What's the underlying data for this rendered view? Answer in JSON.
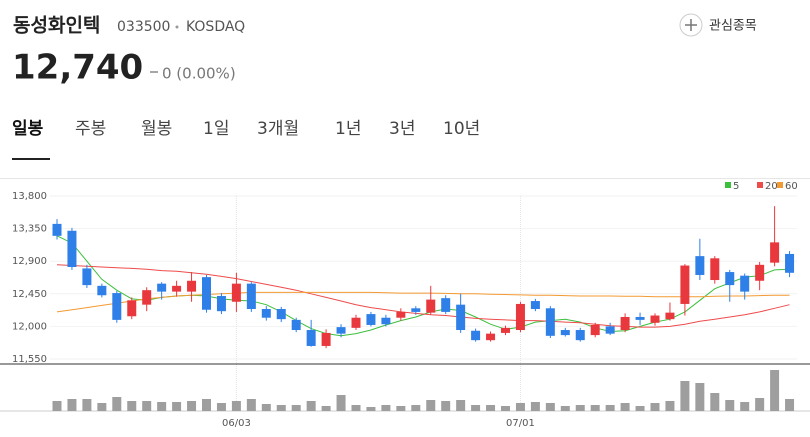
{
  "header": {
    "name": "동성화인텍",
    "code": "033500",
    "market": "KOSDAQ",
    "watch": "관심종목",
    "price": "12,740",
    "change": "0 (0.00%)"
  },
  "tabs": [
    "일봉",
    "주봉",
    "월봉",
    "1일",
    "3개월",
    "1년",
    "3년",
    "10년"
  ],
  "chart_data": {
    "type": "candlestick",
    "categories": [
      null,
      null,
      null,
      null,
      null,
      null,
      null,
      null,
      null,
      null,
      null,
      null,
      "06/03",
      null,
      null,
      null,
      null,
      null,
      null,
      null,
      null,
      null,
      null,
      null,
      null,
      null,
      null,
      null,
      null,
      null,
      null,
      "07/01",
      null,
      null,
      null,
      null,
      null,
      null,
      null,
      null,
      null,
      null,
      null,
      null,
      null,
      null,
      null,
      null,
      null,
      null
    ],
    "open": [
      13415,
      13320,
      12800,
      12560,
      12460,
      12140,
      12300,
      12590,
      12480,
      12480,
      12680,
      12420,
      12340,
      12590,
      12240,
      12240,
      12090,
      11950,
      11730,
      11990,
      11980,
      12170,
      12120,
      12120,
      12250,
      12190,
      12390,
      12300,
      11940,
      11810,
      11910,
      11950,
      12350,
      12250,
      11950,
      11950,
      11880,
      12000,
      11950,
      12130,
      12050,
      12100,
      12310,
      12970,
      12640,
      12750,
      12700,
      12630,
      12880,
      13000
    ],
    "high": [
      13480,
      13360,
      12850,
      12590,
      12490,
      12400,
      12540,
      12610,
      12630,
      12750,
      12710,
      12460,
      12740,
      12610,
      12280,
      12270,
      12120,
      12090,
      11960,
      12030,
      12160,
      12200,
      12160,
      12250,
      12280,
      12560,
      12430,
      12450,
      11970,
      11930,
      12010,
      12340,
      12380,
      12280,
      11980,
      11980,
      12050,
      12050,
      12180,
      12190,
      12180,
      12330,
      12860,
      13210,
      12970,
      12780,
      12730,
      12890,
      13660,
      13040
    ],
    "low": [
      13200,
      12780,
      12530,
      12400,
      12050,
      12100,
      12210,
      12370,
      12410,
      12340,
      12190,
      12170,
      12200,
      12200,
      12080,
      12060,
      11920,
      11720,
      11700,
      11850,
      11950,
      12000,
      12000,
      12080,
      12160,
      12160,
      12170,
      11910,
      11790,
      11790,
      11880,
      11920,
      12210,
      11840,
      11860,
      11790,
      11850,
      11880,
      11920,
      12020,
      12010,
      12080,
      12150,
      12640,
      12590,
      12340,
      12370,
      12500,
      12830,
      12680
    ],
    "close": [
      13250,
      12820,
      12570,
      12430,
      12090,
      12360,
      12500,
      12480,
      12560,
      12630,
      12230,
      12210,
      12590,
      12240,
      12120,
      12100,
      11950,
      11730,
      11910,
      11900,
      12120,
      12020,
      12030,
      12200,
      12200,
      12370,
      12200,
      11950,
      11810,
      11900,
      11980,
      12310,
      12240,
      11870,
      11880,
      11810,
      12020,
      11900,
      12130,
      12090,
      12150,
      12190,
      12840,
      12710,
      12940,
      12570,
      12480,
      12850,
      13160,
      12740
    ],
    "up_color": "#e8383d",
    "down_color": "#2f7fe8",
    "series": [
      {
        "name": "5",
        "color": "#3cbf3c",
        "values": [
          13250,
          13150,
          12900,
          12650,
          12500,
          12380,
          12360,
          12400,
          12420,
          12430,
          12420,
          12380,
          12360,
          12350,
          12300,
          12200,
          12080,
          11970,
          11900,
          11870,
          11900,
          11950,
          12020,
          12080,
          12130,
          12200,
          12240,
          12220,
          12130,
          12030,
          11960,
          11990,
          12060,
          12080,
          12100,
          12060,
          11980,
          11930,
          11940,
          12000,
          12060,
          12100,
          12200,
          12360,
          12520,
          12600,
          12680,
          12700,
          12780,
          12790
        ]
      },
      {
        "name": "20",
        "color": "#ee4b4b",
        "values": [
          12850,
          12840,
          12830,
          12820,
          12810,
          12800,
          12790,
          12770,
          12760,
          12740,
          12720,
          12690,
          12660,
          12620,
          12580,
          12540,
          12500,
          12450,
          12400,
          12350,
          12300,
          12260,
          12230,
          12200,
          12180,
          12160,
          12150,
          12130,
          12110,
          12100,
          12090,
          12080,
          12080,
          12070,
          12060,
          12050,
          12030,
          12010,
          12000,
          11990,
          11990,
          12000,
          12030,
          12070,
          12100,
          12130,
          12160,
          12200,
          12250,
          12300
        ]
      },
      {
        "name": "60",
        "color": "#f39a32",
        "values": [
          12200,
          12230,
          12260,
          12290,
          12320,
          12350,
          12380,
          12400,
          12420,
          12430,
          12440,
          12450,
          12460,
          12470,
          12470,
          12470,
          12470,
          12470,
          12470,
          12470,
          12470,
          12470,
          12465,
          12460,
          12460,
          12460,
          12455,
          12450,
          12450,
          12445,
          12440,
          12435,
          12430,
          12430,
          12425,
          12420,
          12420,
          12420,
          12415,
          12415,
          12410,
          12410,
          12410,
          12410,
          12415,
          12420,
          12420,
          12425,
          12430,
          12430
        ]
      }
    ],
    "volume": [
      10,
      12,
      12,
      8,
      14,
      10,
      10,
      9,
      9,
      10,
      12,
      8,
      10,
      12,
      7,
      6,
      6,
      10,
      5,
      16,
      6,
      4,
      6,
      5,
      6,
      11,
      10,
      11,
      6,
      6,
      5,
      8,
      9,
      8,
      5,
      6,
      6,
      6,
      8,
      5,
      8,
      10,
      30,
      28,
      18,
      11,
      9,
      13,
      41,
      12
    ],
    "volume_color": "#9e9e9e",
    "ylim": [
      11550,
      13800
    ],
    "yticks": [
      {
        "value": 11550,
        "label": "11,550"
      },
      {
        "value": 12000,
        "label": "12,000"
      },
      {
        "value": 12450,
        "label": "12,450"
      },
      {
        "value": 12900,
        "label": "12,900"
      },
      {
        "value": 13350,
        "label": "13,350"
      },
      {
        "value": 13800,
        "label": "13,800"
      }
    ],
    "grid": true
  }
}
